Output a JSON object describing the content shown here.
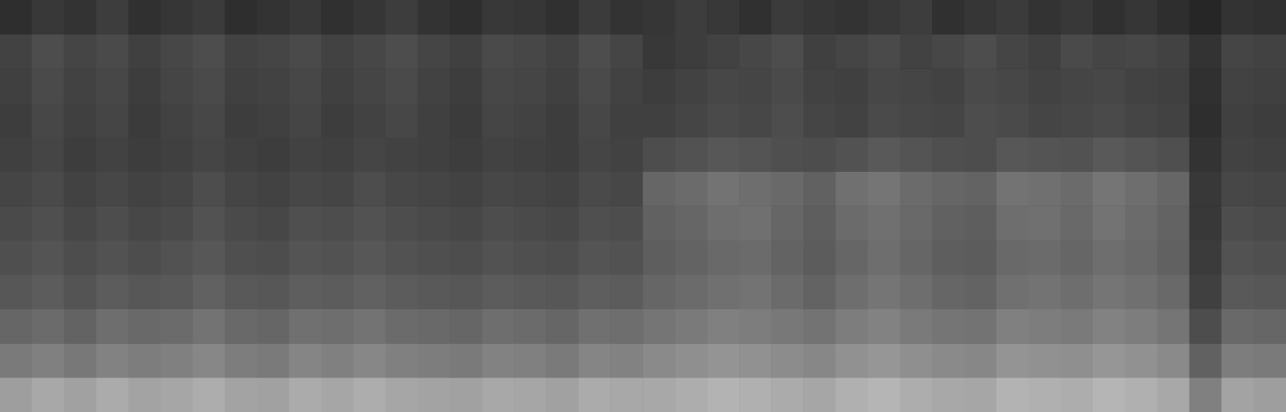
{
  "chart_data": {
    "type": "heatmap",
    "tick_labels": false,
    "grid": false,
    "zlim": [
      0,
      100
    ],
    "cells": [
      [
        18,
        22,
        20,
        24,
        19,
        21,
        23,
        18,
        20,
        22,
        19,
        21,
        24,
        20,
        18,
        22,
        21,
        19,
        23,
        20,
        21,
        24,
        22,
        19,
        23,
        21,
        20,
        22,
        24,
        19,
        21,
        23,
        20,
        22,
        19,
        21,
        18,
        15,
        20,
        19
      ],
      [
        26,
        30,
        27,
        29,
        25,
        28,
        30,
        26,
        27,
        29,
        26,
        28,
        30,
        27,
        25,
        29,
        28,
        26,
        30,
        27,
        22,
        24,
        26,
        28,
        30,
        25,
        27,
        29,
        26,
        28,
        30,
        27,
        25,
        29,
        27,
        28,
        26,
        20,
        27,
        26
      ],
      [
        25,
        29,
        26,
        28,
        24,
        27,
        29,
        25,
        26,
        28,
        25,
        27,
        29,
        26,
        24,
        28,
        27,
        25,
        29,
        26,
        24,
        26,
        28,
        27,
        29,
        26,
        25,
        28,
        27,
        26,
        29,
        28,
        26,
        27,
        28,
        26,
        25,
        19,
        26,
        25
      ],
      [
        24,
        28,
        25,
        27,
        23,
        26,
        28,
        24,
        25,
        27,
        24,
        26,
        28,
        25,
        23,
        27,
        26,
        24,
        28,
        25,
        25,
        27,
        29,
        28,
        30,
        27,
        26,
        29,
        28,
        27,
        30,
        29,
        27,
        28,
        29,
        27,
        26,
        18,
        25,
        24
      ],
      [
        25,
        27,
        24,
        26,
        24,
        25,
        27,
        25,
        24,
        26,
        25,
        27,
        26,
        25,
        24,
        26,
        25,
        24,
        27,
        26,
        30,
        32,
        34,
        33,
        31,
        30,
        32,
        35,
        33,
        31,
        30,
        34,
        33,
        32,
        35,
        33,
        31,
        20,
        26,
        25
      ],
      [
        27,
        29,
        26,
        28,
        26,
        27,
        30,
        27,
        26,
        28,
        27,
        30,
        28,
        27,
        26,
        28,
        27,
        26,
        29,
        28,
        40,
        42,
        45,
        43,
        41,
        38,
        44,
        46,
        42,
        40,
        39,
        45,
        44,
        42,
        46,
        43,
        40,
        22,
        28,
        27
      ],
      [
        29,
        31,
        28,
        30,
        28,
        29,
        32,
        29,
        28,
        31,
        30,
        32,
        30,
        29,
        28,
        30,
        29,
        28,
        31,
        30,
        38,
        40,
        43,
        44,
        40,
        37,
        42,
        44,
        41,
        38,
        37,
        43,
        44,
        41,
        45,
        42,
        39,
        22,
        30,
        29
      ],
      [
        31,
        33,
        30,
        32,
        30,
        32,
        34,
        31,
        30,
        33,
        32,
        34,
        32,
        31,
        30,
        32,
        31,
        30,
        33,
        32,
        37,
        39,
        41,
        42,
        39,
        36,
        40,
        43,
        40,
        37,
        36,
        41,
        42,
        40,
        43,
        41,
        38,
        23,
        32,
        31
      ],
      [
        34,
        36,
        33,
        36,
        34,
        35,
        38,
        35,
        34,
        37,
        36,
        38,
        36,
        35,
        34,
        36,
        35,
        34,
        37,
        36,
        40,
        42,
        44,
        45,
        42,
        39,
        43,
        46,
        43,
        40,
        39,
        44,
        45,
        43,
        46,
        44,
        41,
        25,
        35,
        34
      ],
      [
        40,
        42,
        39,
        43,
        41,
        42,
        45,
        41,
        40,
        44,
        43,
        45,
        42,
        41,
        40,
        43,
        42,
        40,
        44,
        43,
        46,
        48,
        50,
        49,
        47,
        45,
        49,
        51,
        48,
        46,
        45,
        50,
        49,
        48,
        51,
        49,
        46,
        30,
        41,
        40
      ],
      [
        48,
        50,
        47,
        51,
        49,
        50,
        53,
        49,
        48,
        52,
        50,
        53,
        50,
        49,
        48,
        51,
        50,
        48,
        52,
        51,
        54,
        56,
        58,
        57,
        55,
        53,
        57,
        59,
        56,
        54,
        53,
        58,
        57,
        56,
        59,
        57,
        54,
        38,
        49,
        48
      ],
      [
        62,
        66,
        63,
        67,
        64,
        65,
        68,
        64,
        63,
        67,
        65,
        68,
        65,
        64,
        63,
        66,
        65,
        63,
        67,
        66,
        66,
        68,
        70,
        69,
        67,
        65,
        69,
        71,
        68,
        66,
        65,
        70,
        69,
        68,
        71,
        69,
        66,
        50,
        64,
        62
      ]
    ]
  }
}
